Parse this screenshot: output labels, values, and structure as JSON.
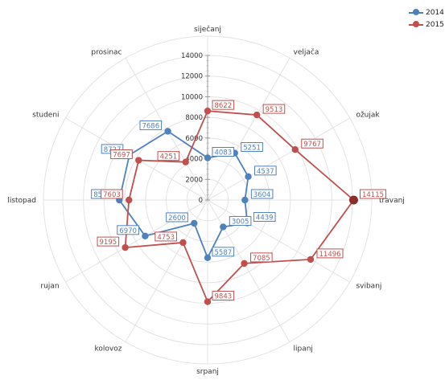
{
  "chart_data": {
    "type": "radar",
    "categories": [
      "siječanj",
      "veljača",
      "ožujak",
      "travanj",
      "svibanj",
      "lipanj",
      "srpanj",
      "kolovoz",
      "rujan",
      "listopad",
      "studeni",
      "prosinac"
    ],
    "rlim": [
      0,
      14000
    ],
    "radial_ticks": [
      0,
      2000,
      4000,
      6000,
      8000,
      10000,
      12000,
      14000
    ],
    "grid": true,
    "legend": "top-right",
    "series": [
      {
        "name": "2014",
        "color": "#4f81bd",
        "values": [
          4083,
          5251,
          4537,
          3604,
          4439,
          3005,
          5587,
          2600,
          6970,
          8533,
          8727,
          7686
        ]
      },
      {
        "name": "2015",
        "color": "#c0504d",
        "values": [
          8622,
          9513,
          9767,
          14115,
          11496,
          7085,
          9843,
          4753,
          9195,
          7603,
          7697,
          4251
        ]
      }
    ]
  }
}
